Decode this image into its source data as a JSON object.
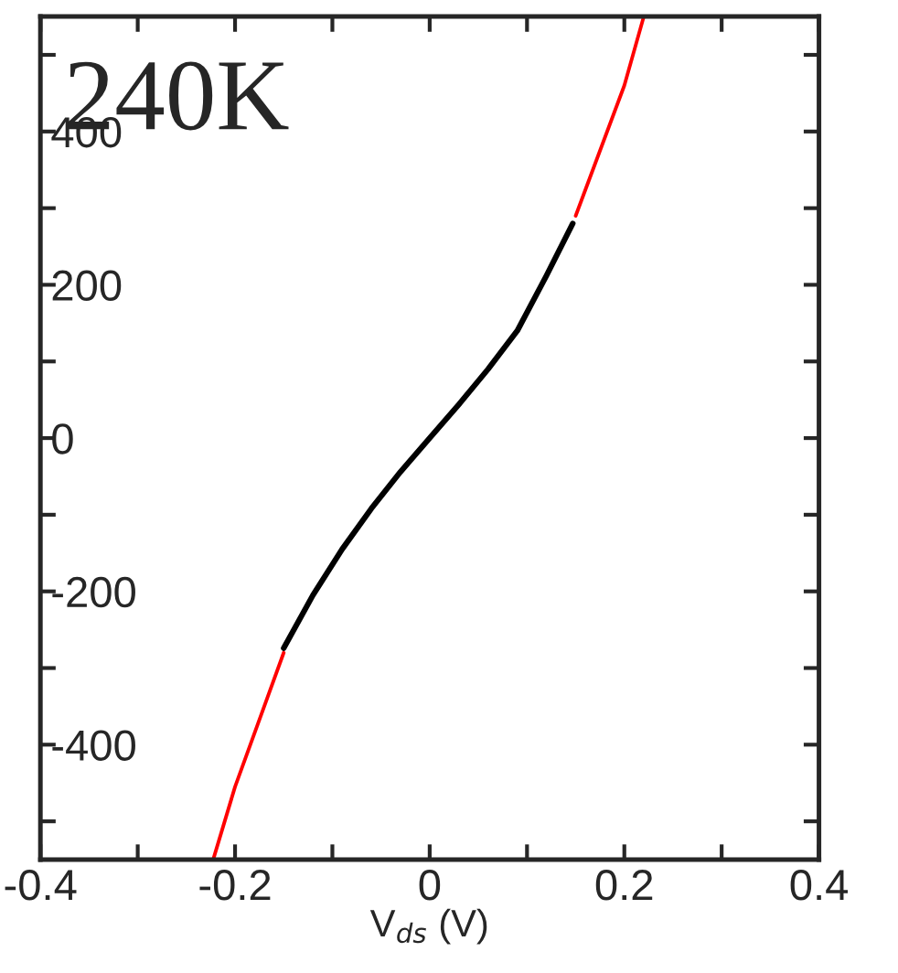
{
  "chart_data": {
    "type": "line",
    "xlabel": "V$_{ds}$ (V)",
    "annotations": [
      "240K"
    ],
    "series": [
      {
        "color": "#ff0000",
        "x": [
          -0.222,
          -0.2,
          -0.15,
          -0.1,
          -0.05,
          0,
          0.05,
          0.1,
          0.15,
          0.2,
          0.22
        ],
        "values": [
          -548,
          -455,
          -280,
          null,
          null,
          null,
          null,
          null,
          290,
          460,
          550
        ]
      },
      {
        "color": "#000000",
        "x": [
          -0.15,
          -0.12,
          -0.09,
          -0.06,
          -0.03,
          0,
          0.03,
          0.06,
          0.09,
          0.12,
          0.147
        ],
        "values": [
          -274,
          -205,
          -145,
          -92,
          -44,
          0,
          44,
          90,
          140,
          212,
          280
        ]
      }
    ],
    "xlim": [
      -0.4,
      0.4
    ],
    "ylim": [
      -550,
      550
    ],
    "xticks": [
      -0.4,
      {
        "value": -0.3,
        "label": null
      },
      -0.2,
      {
        "value": -0.1,
        "label": null
      },
      0,
      {
        "value": 0.1,
        "label": null
      },
      0.2,
      {
        "value": 0.3,
        "label": null
      },
      0.4
    ],
    "yticks": [
      {
        "value": -500,
        "label": null
      },
      -400,
      {
        "value": -300,
        "label": null
      },
      -200,
      {
        "value": -100,
        "label": null
      },
      0,
      {
        "value": 100,
        "label": null
      },
      200,
      {
        "value": 300,
        "label": null
      },
      400,
      {
        "value": 500,
        "label": null
      }
    ],
    "grid": false,
    "legend": false,
    "line_style": "solid",
    "marker": "none"
  }
}
